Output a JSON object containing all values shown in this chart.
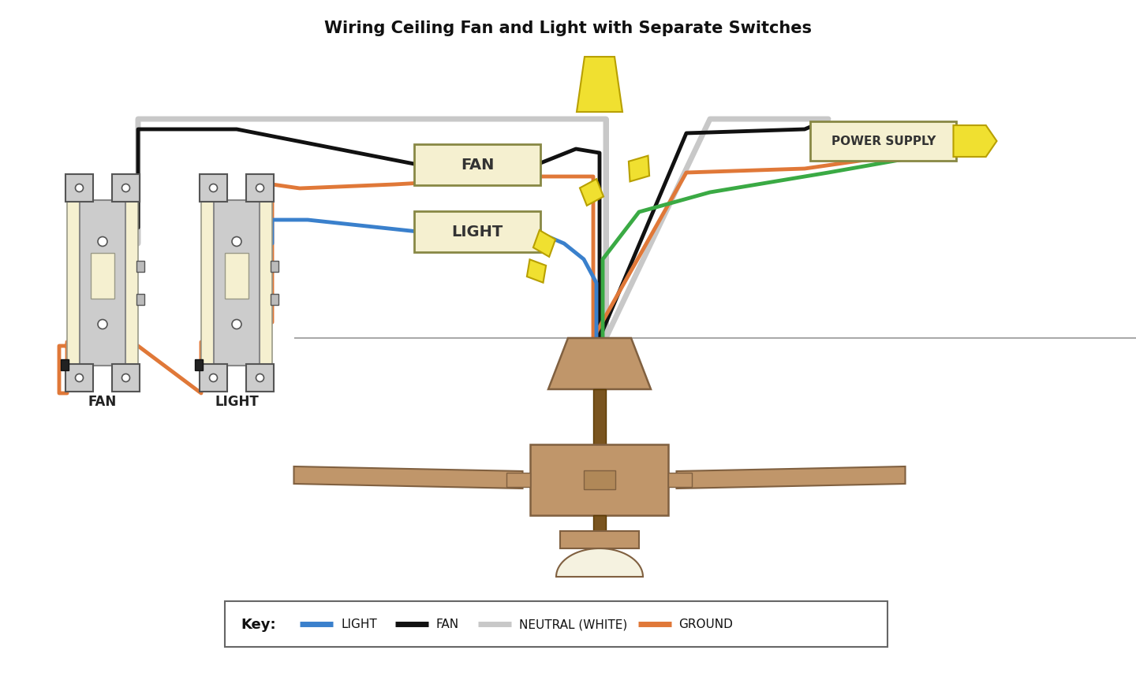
{
  "title": "Wiring Ceiling Fan and Light with Separate Switches",
  "title_fontsize": 15,
  "bg_color": "#ffffff",
  "BLACK": "#111111",
  "WHITE": "#c8c8c8",
  "ORANGE": "#e07838",
  "BLUE": "#3a80cc",
  "GREEN": "#3aaa44",
  "YELLOW": "#f0e030",
  "YEDGE": "#b8a000",
  "TAN": "#c0966a",
  "TAN_DARK": "#7a5520",
  "SGRAY": "#cccccc",
  "CREAM": "#f5f0d0",
  "BEDGE": "#888844",
  "wire_lw": 3.5,
  "key_labels": [
    "LIGHT",
    "FAN",
    "NEUTRAL (WHITE)",
    "GROUND"
  ],
  "key_colors": [
    "#3a80cc",
    "#111111",
    "#c8c8c8",
    "#e07838"
  ]
}
